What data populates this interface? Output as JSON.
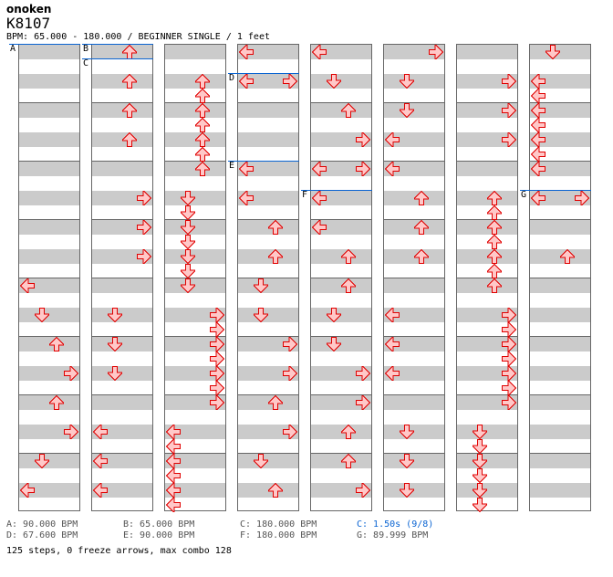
{
  "header": {
    "artist": "onoken",
    "title": "K8107",
    "info": "BPM: 65.000 - 180.000 / BEGINNER SINGLE / 1 feet"
  },
  "colors": {
    "arrow_fill": "#ffc8c8",
    "arrow_stroke": "#e00000",
    "bpm_line": "#0a64d2"
  },
  "lanes": [
    "left",
    "down",
    "up",
    "right"
  ],
  "columns": [
    {
      "notes": [
        [
          16,
          "L"
        ],
        [
          18,
          "D"
        ],
        [
          20,
          "U"
        ],
        [
          22,
          "R"
        ],
        [
          24,
          "U"
        ],
        [
          26,
          "R"
        ],
        [
          28,
          "D"
        ],
        [
          30,
          "L"
        ]
      ]
    },
    {
      "notes": [
        [
          0,
          "U"
        ],
        [
          2,
          "U"
        ],
        [
          4,
          "U"
        ],
        [
          6,
          "U"
        ],
        [
          10,
          "R"
        ],
        [
          12,
          "R"
        ],
        [
          14,
          "R"
        ],
        [
          18,
          "D"
        ],
        [
          20,
          "D"
        ],
        [
          22,
          "D"
        ],
        [
          26,
          "L"
        ],
        [
          28,
          "L"
        ],
        [
          30,
          "L"
        ]
      ]
    },
    {
      "notes": [
        [
          2,
          "U"
        ],
        [
          3,
          "U"
        ],
        [
          4,
          "U"
        ],
        [
          5,
          "U"
        ],
        [
          6,
          "U"
        ],
        [
          7,
          "U"
        ],
        [
          8,
          "U"
        ],
        [
          10,
          "D"
        ],
        [
          11,
          "D"
        ],
        [
          12,
          "D"
        ],
        [
          13,
          "D"
        ],
        [
          14,
          "D"
        ],
        [
          15,
          "D"
        ],
        [
          16,
          "D"
        ],
        [
          18,
          "R"
        ],
        [
          19,
          "R"
        ],
        [
          20,
          "R"
        ],
        [
          21,
          "R"
        ],
        [
          22,
          "R"
        ],
        [
          23,
          "R"
        ],
        [
          24,
          "R"
        ],
        [
          26,
          "L"
        ],
        [
          27,
          "L"
        ],
        [
          28,
          "L"
        ],
        [
          29,
          "L"
        ],
        [
          30,
          "L"
        ],
        [
          31,
          "L"
        ]
      ]
    },
    {
      "notes": [
        [
          0,
          "L"
        ],
        [
          2,
          "L"
        ],
        [
          2,
          "R"
        ],
        [
          8,
          "L"
        ],
        [
          10,
          "L"
        ],
        [
          12,
          "U"
        ],
        [
          14,
          "U"
        ],
        [
          16,
          "D"
        ],
        [
          18,
          "D"
        ],
        [
          20,
          "R"
        ],
        [
          22,
          "R"
        ],
        [
          24,
          "U"
        ],
        [
          26,
          "R"
        ],
        [
          28,
          "D"
        ],
        [
          30,
          "U"
        ]
      ]
    },
    {
      "notes": [
        [
          0,
          "L"
        ],
        [
          2,
          "D"
        ],
        [
          4,
          "U"
        ],
        [
          6,
          "R"
        ],
        [
          8,
          "L"
        ],
        [
          8,
          "R"
        ],
        [
          10,
          "L"
        ],
        [
          12,
          "L"
        ],
        [
          14,
          "U"
        ],
        [
          16,
          "U"
        ],
        [
          18,
          "D"
        ],
        [
          20,
          "D"
        ],
        [
          22,
          "R"
        ],
        [
          24,
          "R"
        ],
        [
          26,
          "U"
        ],
        [
          28,
          "U"
        ],
        [
          30,
          "R"
        ]
      ]
    },
    {
      "notes": [
        [
          0,
          "R"
        ],
        [
          2,
          "D"
        ],
        [
          4,
          "D"
        ],
        [
          6,
          "L"
        ],
        [
          8,
          "L"
        ],
        [
          10,
          "U"
        ],
        [
          12,
          "U"
        ],
        [
          14,
          "U"
        ],
        [
          18,
          "L"
        ],
        [
          20,
          "L"
        ],
        [
          22,
          "L"
        ],
        [
          26,
          "D"
        ],
        [
          28,
          "D"
        ],
        [
          30,
          "D"
        ]
      ]
    },
    {
      "notes": [
        [
          2,
          "R"
        ],
        [
          4,
          "R"
        ],
        [
          6,
          "R"
        ],
        [
          10,
          "U"
        ],
        [
          11,
          "U"
        ],
        [
          12,
          "U"
        ],
        [
          13,
          "U"
        ],
        [
          14,
          "U"
        ],
        [
          15,
          "U"
        ],
        [
          16,
          "U"
        ],
        [
          18,
          "R"
        ],
        [
          19,
          "R"
        ],
        [
          20,
          "R"
        ],
        [
          21,
          "R"
        ],
        [
          22,
          "R"
        ],
        [
          23,
          "R"
        ],
        [
          24,
          "R"
        ],
        [
          26,
          "D"
        ],
        [
          27,
          "D"
        ],
        [
          28,
          "D"
        ],
        [
          29,
          "D"
        ],
        [
          30,
          "D"
        ],
        [
          31,
          "D"
        ]
      ]
    },
    {
      "notes": [
        [
          0,
          "D"
        ],
        [
          2,
          "L"
        ],
        [
          3,
          "L"
        ],
        [
          4,
          "L"
        ],
        [
          5,
          "L"
        ],
        [
          6,
          "L"
        ],
        [
          7,
          "L"
        ],
        [
          8,
          "L"
        ],
        [
          10,
          "L"
        ],
        [
          10,
          "R"
        ],
        [
          14,
          "U"
        ]
      ]
    }
  ],
  "markers": [
    {
      "label": "A",
      "column": 0,
      "row": 0
    },
    {
      "label": "B",
      "column": 1,
      "row": 0
    },
    {
      "label": "C",
      "column": 1,
      "row": 1
    },
    {
      "label": "D",
      "column": 3,
      "row": 2
    },
    {
      "label": "E",
      "column": 3,
      "row": 8
    },
    {
      "label": "F",
      "column": 4,
      "row": 10
    },
    {
      "label": "G",
      "column": 7,
      "row": 10
    }
  ],
  "legend": [
    {
      "text": "A: 90.000 BPM",
      "stop": false
    },
    {
      "text": "B: 65.000 BPM",
      "stop": false
    },
    {
      "text": "C: 180.000 BPM",
      "stop": false
    },
    {
      "text": "C: 1.50s (9/8)",
      "stop": true
    },
    {
      "text": "D: 67.600 BPM",
      "stop": false
    },
    {
      "text": "E: 90.000 BPM",
      "stop": false
    },
    {
      "text": "F: 180.000 BPM",
      "stop": false
    },
    {
      "text": "G: 89.999 BPM",
      "stop": false
    }
  ],
  "footer": "125 steps, 0 freeze arrows, max combo 128"
}
